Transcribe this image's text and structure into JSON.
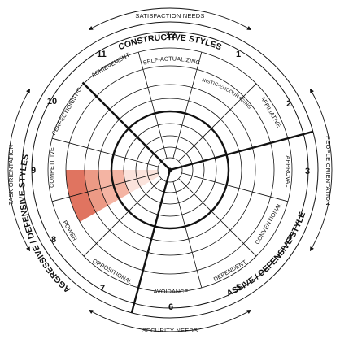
{
  "outer_labels": {
    "top": "SATISFACTION NEEDS",
    "bottom": "SECURITY NEEDS",
    "left": "TASK ORIENTATION",
    "right": "PEOPLE ORIENTATION"
  },
  "cluster_labels": {
    "constructive": "CONSTRUCTIVE STYLES",
    "passive": "PASSIVE / DEFENSIVE STYLES",
    "aggressive": "AGGRESSIVE / DEFENSIVE STYLES"
  },
  "segments": [
    {
      "number": "1",
      "label": "HUMANISTIC-ENCOURAGING"
    },
    {
      "number": "2",
      "label": "AFFILIATIVE"
    },
    {
      "number": "3",
      "label": "APPROVAL"
    },
    {
      "number": "4",
      "label": "CONVENTIONAL"
    },
    {
      "number": "5",
      "label": "DEPENDENT"
    },
    {
      "number": "6",
      "label": "AVOIDANCE"
    },
    {
      "number": "7",
      "label": "OPPOSITIONAL"
    },
    {
      "number": "8",
      "label": "POWER"
    },
    {
      "number": "9",
      "label": "COMPETITIVE"
    },
    {
      "number": "10",
      "label": "PERFECTIONISTIC"
    },
    {
      "number": "11",
      "label": "ACHIEVEMENT"
    },
    {
      "number": "12",
      "label": "SELF-ACTUALIZING"
    }
  ],
  "highlight": {
    "segment": "POWER",
    "colors": [
      "#fbe3dc",
      "#f4b4a3",
      "#ec9a85",
      "#e07460"
    ]
  },
  "colors": {
    "line": "#111111",
    "background": "#ffffff"
  }
}
